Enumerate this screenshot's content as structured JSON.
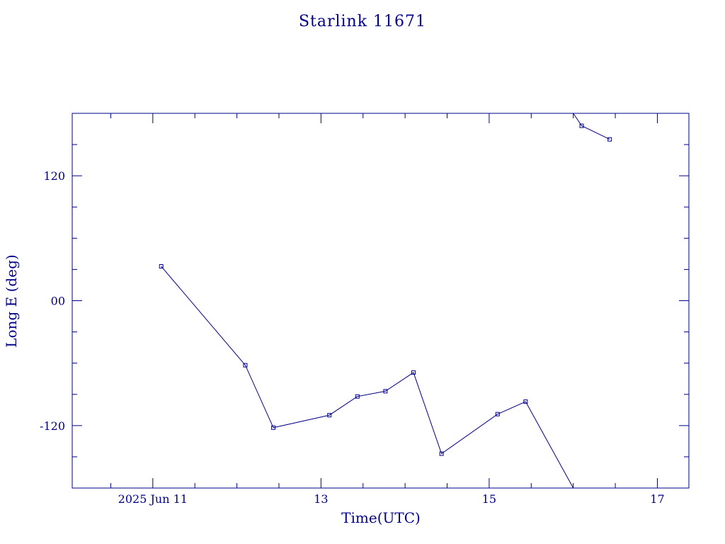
{
  "chart_data": {
    "type": "line",
    "title": "Starlink 11671",
    "xlabel": "Time(UTC)",
    "ylabel": "Long E (deg)",
    "x_axis": {
      "kind": "date",
      "range": [
        "2025-06-10T01:00",
        "2025-06-17T09:00"
      ],
      "major_ticks": [
        {
          "value": "2025-06-11T00:00",
          "label": "2025 Jun 11"
        },
        {
          "value": "2025-06-13T00:00",
          "label": "13"
        },
        {
          "value": "2025-06-15T00:00",
          "label": "15"
        },
        {
          "value": "2025-06-17T00:00",
          "label": "17"
        }
      ]
    },
    "y_axis": {
      "range": [
        -180,
        180
      ],
      "major_ticks": [
        {
          "value": 120,
          "label": "120"
        },
        {
          "value": 0,
          "label": "00"
        },
        {
          "value": -120,
          "label": "-120"
        }
      ],
      "minor_step": 30
    },
    "color": "#00008b",
    "series": [
      {
        "points": [
          {
            "x": "2025-06-11T02:24",
            "y": 33
          },
          {
            "x": "2025-06-12T02:24",
            "y": -62
          },
          {
            "x": "2025-06-12T10:24",
            "y": -122
          },
          {
            "x": "2025-06-13T02:24",
            "y": -110
          },
          {
            "x": "2025-06-13T10:24",
            "y": -92
          },
          {
            "x": "2025-06-13T18:24",
            "y": -87
          },
          {
            "x": "2025-06-14T02:24",
            "y": -69
          },
          {
            "x": "2025-06-14T10:24",
            "y": -147
          },
          {
            "x": "2025-06-15T02:24",
            "y": -109
          },
          {
            "x": "2025-06-15T10:24",
            "y": -97
          },
          {
            "x": "2025-06-16T00:00",
            "y": -180
          }
        ]
      },
      {
        "points": [
          {
            "x": "2025-06-16T00:00",
            "y": 180
          },
          {
            "x": "2025-06-16T02:24",
            "y": 168
          },
          {
            "x": "2025-06-16T10:24",
            "y": 155
          }
        ]
      }
    ]
  }
}
